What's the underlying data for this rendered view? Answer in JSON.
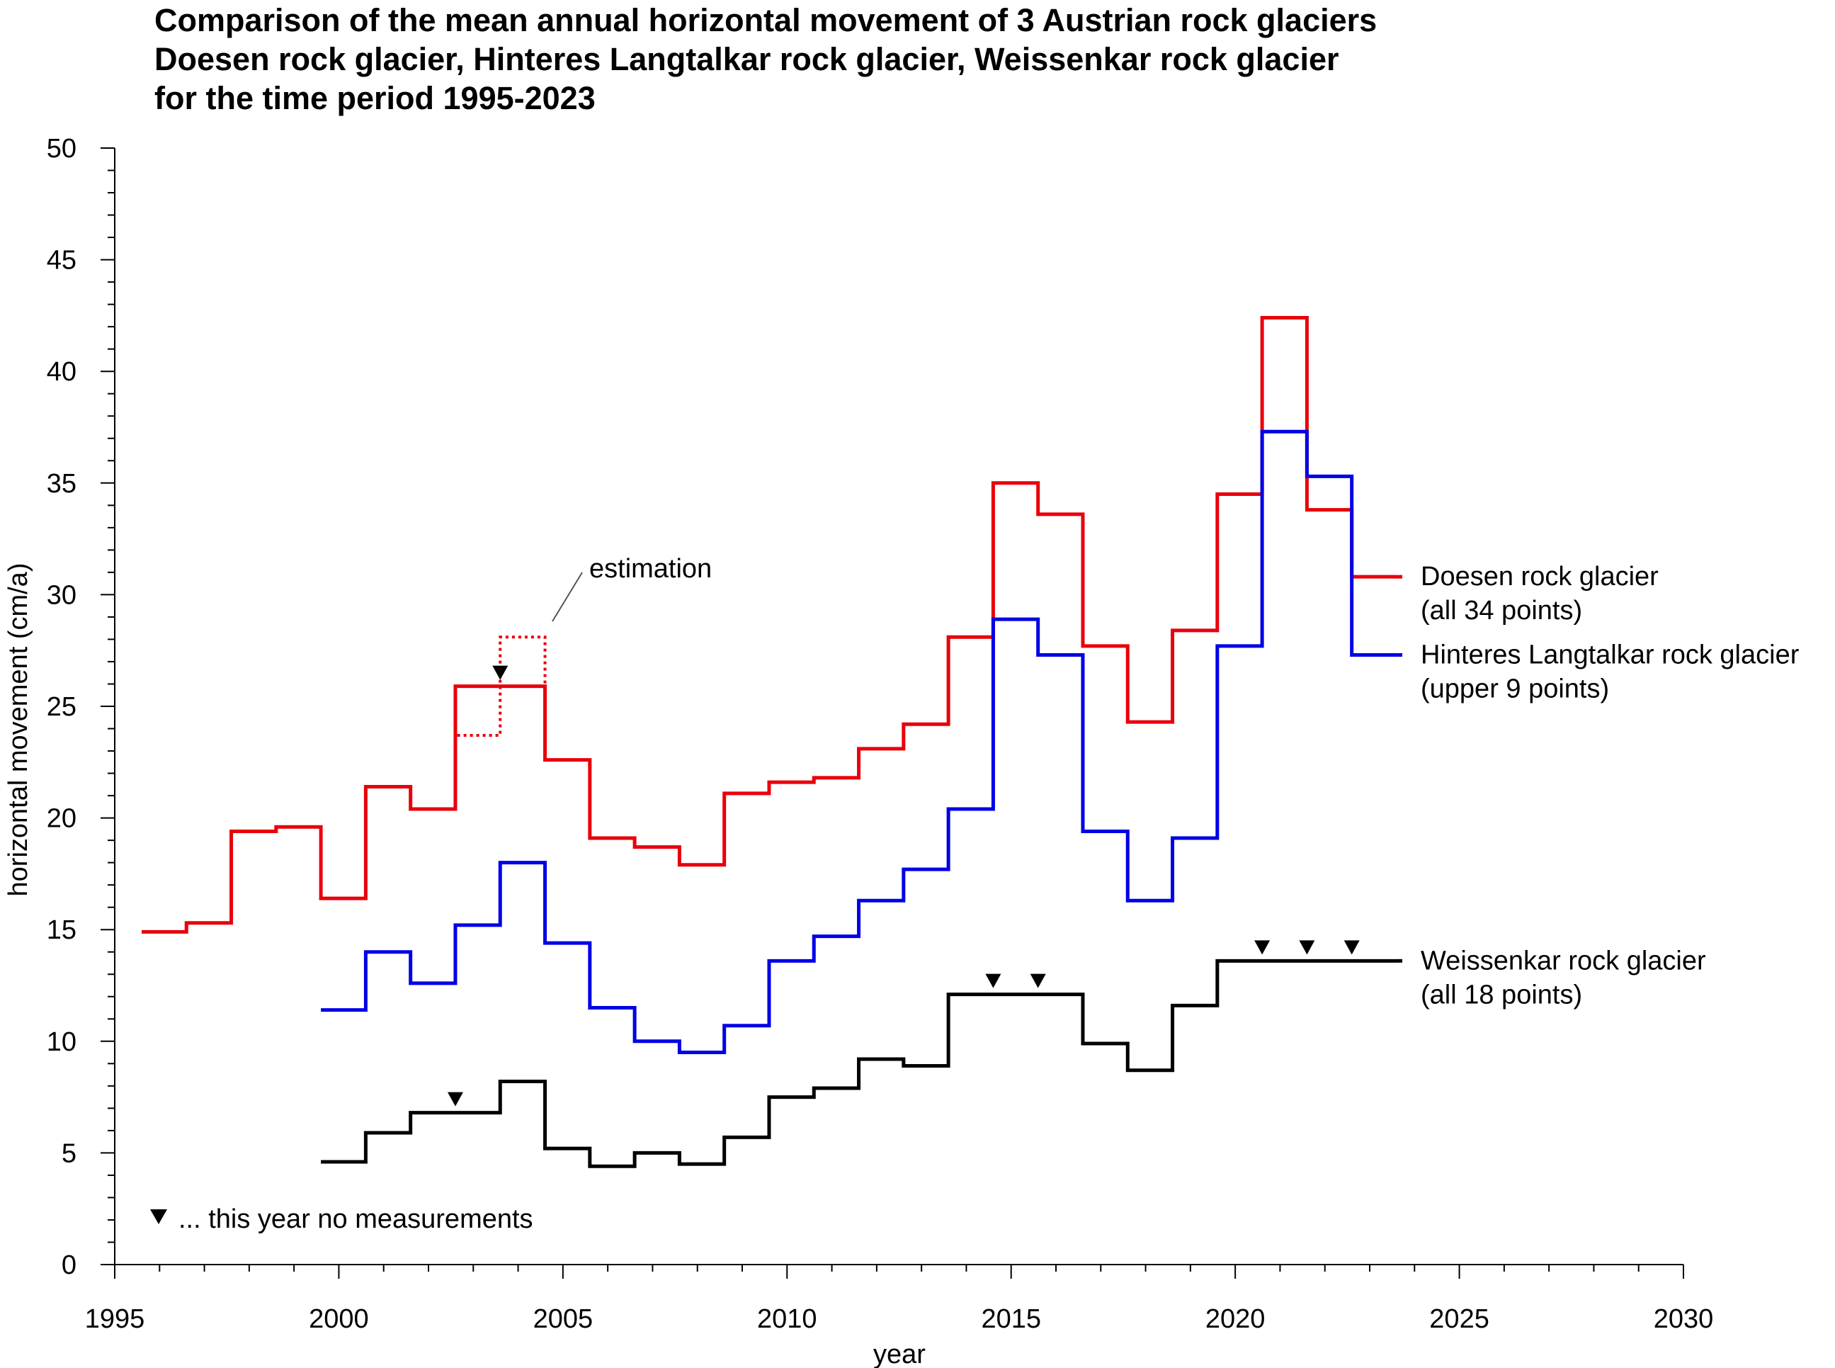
{
  "chart_data": {
    "type": "line",
    "step": true,
    "title": [
      "Comparison of the mean annual horizontal movement of 3 Austrian rock glaciers",
      "Doesen rock glacier, Hinteres Langtalkar rock glacier, Weissenkar rock glacier",
      "for the time period 1995-2023"
    ],
    "xlabel": "year",
    "ylabel": "horizontal movement (cm/a)",
    "xlim": [
      1995,
      2030
    ],
    "ylim": [
      0,
      50
    ],
    "xticks": [
      "1995",
      "2000",
      "2005",
      "2010",
      "2015",
      "2020",
      "2025",
      "2030"
    ],
    "yticks": [
      "0",
      "5",
      "10",
      "15",
      "20",
      "25",
      "30",
      "35",
      "40",
      "45",
      "50"
    ],
    "grid": false,
    "series": [
      {
        "name": "Doesen rock glacier",
        "sublabel": "(all 34 points)",
        "color": "#e8000b",
        "segments": [
          {
            "x0": 1995.6,
            "x1": 1996.6,
            "y": 14.9
          },
          {
            "x0": 1996.6,
            "x1": 1997.6,
            "y": 15.3
          },
          {
            "x0": 1997.6,
            "x1": 1998.6,
            "y": 19.4
          },
          {
            "x0": 1998.6,
            "x1": 1999.6,
            "y": 19.6
          },
          {
            "x0": 1999.6,
            "x1": 2000.6,
            "y": 16.4
          },
          {
            "x0": 2000.6,
            "x1": 2001.6,
            "y": 21.4
          },
          {
            "x0": 2001.6,
            "x1": 2002.6,
            "y": 20.4
          },
          {
            "x0": 2002.6,
            "x1": 2004.6,
            "y": 25.9
          },
          {
            "x0": 2004.6,
            "x1": 2005.6,
            "y": 22.6
          },
          {
            "x0": 2005.6,
            "x1": 2006.6,
            "y": 19.1
          },
          {
            "x0": 2006.6,
            "x1": 2007.6,
            "y": 18.7
          },
          {
            "x0": 2007.6,
            "x1": 2008.6,
            "y": 17.9
          },
          {
            "x0": 2008.6,
            "x1": 2009.6,
            "y": 21.1
          },
          {
            "x0": 2009.6,
            "x1": 2010.6,
            "y": 21.6
          },
          {
            "x0": 2010.6,
            "x1": 2011.6,
            "y": 21.8
          },
          {
            "x0": 2011.6,
            "x1": 2012.6,
            "y": 23.1
          },
          {
            "x0": 2012.6,
            "x1": 2013.6,
            "y": 24.2
          },
          {
            "x0": 2013.6,
            "x1": 2014.6,
            "y": 28.1
          },
          {
            "x0": 2014.6,
            "x1": 2015.6,
            "y": 35.0
          },
          {
            "x0": 2015.6,
            "x1": 2016.6,
            "y": 33.6
          },
          {
            "x0": 2016.6,
            "x1": 2017.6,
            "y": 27.7
          },
          {
            "x0": 2017.6,
            "x1": 2018.6,
            "y": 24.3
          },
          {
            "x0": 2018.6,
            "x1": 2019.6,
            "y": 28.4
          },
          {
            "x0": 2019.6,
            "x1": 2020.6,
            "y": 34.5
          },
          {
            "x0": 2020.6,
            "x1": 2021.6,
            "y": 42.4
          },
          {
            "x0": 2021.6,
            "x1": 2022.6,
            "y": 33.8
          },
          {
            "x0": 2022.6,
            "x1": 2023.6,
            "y": 30.8
          }
        ],
        "estimation_segments": [
          {
            "x0": 2002.6,
            "x1": 2003.6,
            "y": 23.7
          },
          {
            "x0": 2003.6,
            "x1": 2004.6,
            "y": 28.1
          }
        ],
        "no_measurement_years": [
          2003.6
        ]
      },
      {
        "name": "Hinteres Langtalkar rock glacier",
        "sublabel": "(upper 9 points)",
        "color": "#0000e6",
        "segments": [
          {
            "x0": 1999.6,
            "x1": 2000.6,
            "y": 11.4
          },
          {
            "x0": 2000.6,
            "x1": 2001.6,
            "y": 14.0
          },
          {
            "x0": 2001.6,
            "x1": 2002.6,
            "y": 12.6
          },
          {
            "x0": 2002.6,
            "x1": 2003.6,
            "y": 15.2
          },
          {
            "x0": 2003.6,
            "x1": 2004.6,
            "y": 18.0
          },
          {
            "x0": 2004.6,
            "x1": 2005.6,
            "y": 14.4
          },
          {
            "x0": 2005.6,
            "x1": 2006.6,
            "y": 11.5
          },
          {
            "x0": 2006.6,
            "x1": 2007.6,
            "y": 10.0
          },
          {
            "x0": 2007.6,
            "x1": 2008.6,
            "y": 9.5
          },
          {
            "x0": 2008.6,
            "x1": 2009.6,
            "y": 10.7
          },
          {
            "x0": 2009.6,
            "x1": 2010.6,
            "y": 13.6
          },
          {
            "x0": 2010.6,
            "x1": 2011.6,
            "y": 14.7
          },
          {
            "x0": 2011.6,
            "x1": 2012.6,
            "y": 16.3
          },
          {
            "x0": 2012.6,
            "x1": 2013.6,
            "y": 17.7
          },
          {
            "x0": 2013.6,
            "x1": 2014.6,
            "y": 20.4
          },
          {
            "x0": 2014.6,
            "x1": 2015.6,
            "y": 28.9
          },
          {
            "x0": 2015.6,
            "x1": 2016.6,
            "y": 27.3
          },
          {
            "x0": 2016.6,
            "x1": 2017.6,
            "y": 19.4
          },
          {
            "x0": 2017.6,
            "x1": 2018.6,
            "y": 16.3
          },
          {
            "x0": 2018.6,
            "x1": 2019.6,
            "y": 19.1
          },
          {
            "x0": 2019.6,
            "x1": 2020.6,
            "y": 27.7
          },
          {
            "x0": 2020.6,
            "x1": 2021.6,
            "y": 37.3
          },
          {
            "x0": 2021.6,
            "x1": 2022.6,
            "y": 35.3
          },
          {
            "x0": 2022.6,
            "x1": 2023.6,
            "y": 27.3
          }
        ],
        "no_measurement_years": []
      },
      {
        "name": "Weissenkar rock glacier",
        "sublabel": "(all 18 points)",
        "color": "#000000",
        "segments": [
          {
            "x0": 1999.6,
            "x1": 2000.6,
            "y": 4.6
          },
          {
            "x0": 2000.6,
            "x1": 2001.6,
            "y": 5.9
          },
          {
            "x0": 2001.6,
            "x1": 2003.6,
            "y": 6.8
          },
          {
            "x0": 2003.6,
            "x1": 2004.6,
            "y": 8.2
          },
          {
            "x0": 2004.6,
            "x1": 2005.6,
            "y": 5.2
          },
          {
            "x0": 2005.6,
            "x1": 2006.6,
            "y": 4.4
          },
          {
            "x0": 2006.6,
            "x1": 2007.6,
            "y": 5.0
          },
          {
            "x0": 2007.6,
            "x1": 2008.6,
            "y": 4.5
          },
          {
            "x0": 2008.6,
            "x1": 2009.6,
            "y": 5.7
          },
          {
            "x0": 2009.6,
            "x1": 2010.6,
            "y": 7.5
          },
          {
            "x0": 2010.6,
            "x1": 2011.6,
            "y": 7.9
          },
          {
            "x0": 2011.6,
            "x1": 2012.6,
            "y": 9.2
          },
          {
            "x0": 2012.6,
            "x1": 2013.6,
            "y": 8.9
          },
          {
            "x0": 2013.6,
            "x1": 2016.6,
            "y": 12.1
          },
          {
            "x0": 2016.6,
            "x1": 2017.6,
            "y": 9.9
          },
          {
            "x0": 2017.6,
            "x1": 2018.6,
            "y": 8.7
          },
          {
            "x0": 2018.6,
            "x1": 2019.6,
            "y": 11.6
          },
          {
            "x0": 2019.6,
            "x1": 2023.6,
            "y": 13.6
          }
        ],
        "no_measurement_years": [
          2002.6,
          2014.6,
          2015.6,
          2020.6,
          2021.6,
          2022.6
        ]
      }
    ],
    "annotations": {
      "estimation": "estimation",
      "legend_note": "... this year no measurements"
    }
  }
}
